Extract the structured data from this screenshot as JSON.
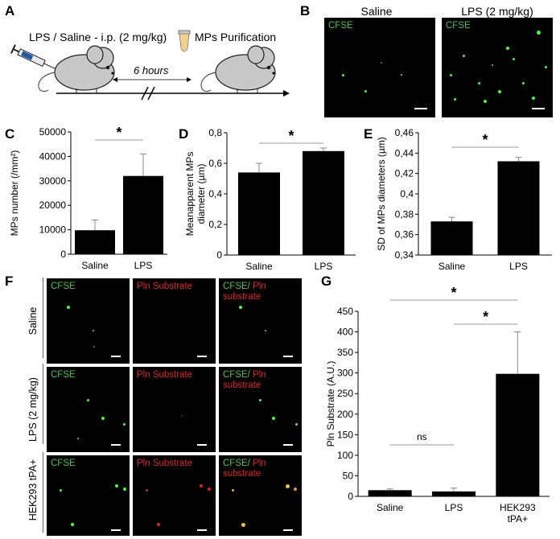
{
  "panels": {
    "A": "A",
    "B": "B",
    "C": "C",
    "D": "D",
    "E": "E",
    "F": "F",
    "G": "G"
  },
  "schematic": {
    "injection_label": "LPS / Saline - i.p. (2 mg/kg)",
    "purification_label": "MPs Purification",
    "time_label": "6 hours"
  },
  "panel_b": {
    "columns": [
      "Saline",
      "LPS (2 mg/kg)"
    ],
    "stain": "CFSE"
  },
  "panel_f": {
    "col_labels": {
      "cfse": "CFSE",
      "pln": "Pln Substrate",
      "merge_green": "CFSE/",
      "merge_red_1": "Pln",
      "merge_red_2": "substrate"
    },
    "rows": [
      "Saline",
      "LPS (2 mg/kg)",
      "HEK293 tPA+"
    ]
  },
  "colors": {
    "green": "#47c447",
    "red": "#e11f1f",
    "bar": "#000000"
  },
  "chart_data": [
    {
      "id": "C",
      "type": "bar",
      "categories": [
        "Saline",
        "LPS"
      ],
      "values": [
        9800,
        32000
      ],
      "errors": [
        4200,
        9000
      ],
      "ylabel": "MPs number (/mm²)",
      "ylim": [
        0,
        50000
      ],
      "yticks": [
        "0",
        "10000",
        "20000",
        "30000",
        "40000",
        "50000"
      ],
      "yticks_values": [
        0,
        10000,
        20000,
        30000,
        40000,
        50000
      ],
      "significance": [
        {
          "pair": [
            0,
            1
          ],
          "label": "*"
        }
      ]
    },
    {
      "id": "D",
      "type": "bar",
      "categories": [
        "Saline",
        "LPS"
      ],
      "values": [
        0.54,
        0.68
      ],
      "errors": [
        0.06,
        0.02
      ],
      "ylabel_lines": [
        "Meanapparent MPs",
        "diameter (µm)"
      ],
      "ylim": [
        0,
        0.8
      ],
      "yticks": [
        "0",
        "0,2",
        "0,4",
        "0,6",
        "0,8"
      ],
      "yticks_values": [
        0,
        0.2,
        0.4,
        0.6,
        0.8
      ],
      "significance": [
        {
          "pair": [
            0,
            1
          ],
          "label": "*"
        }
      ]
    },
    {
      "id": "E",
      "type": "bar",
      "categories": [
        "Saline",
        "LPS"
      ],
      "values": [
        0.373,
        0.432
      ],
      "errors": [
        0.004,
        0.004
      ],
      "ylabel": "SD of MPs diameters (µm)",
      "ylim": [
        0.34,
        0.46
      ],
      "yticks": [
        "0,34",
        "0,36",
        "0,38",
        "0,4",
        "0,42",
        "0,44",
        "0,46"
      ],
      "yticks_values": [
        0.34,
        0.36,
        0.38,
        0.4,
        0.42,
        0.44,
        0.46
      ],
      "significance": [
        {
          "pair": [
            0,
            1
          ],
          "label": "*"
        }
      ]
    },
    {
      "id": "G",
      "type": "bar",
      "categories": [
        "Saline",
        "LPS",
        "HEK293\ntPA+"
      ],
      "values": [
        15,
        12,
        298
      ],
      "errors": [
        3,
        8,
        102
      ],
      "ylabel": "Pln Substrate (A.U.)",
      "ylim": [
        0,
        450
      ],
      "yticks": [
        "0",
        "50",
        "100",
        "150",
        "200",
        "250",
        "300",
        "350",
        "400",
        "450"
      ],
      "yticks_values": [
        0,
        50,
        100,
        150,
        200,
        250,
        300,
        350,
        400,
        450
      ],
      "significance": [
        {
          "pair": [
            0,
            1
          ],
          "label": "ns"
        },
        {
          "pair": [
            0,
            2
          ],
          "label": "*"
        },
        {
          "pair": [
            1,
            2
          ],
          "label": "*"
        }
      ]
    }
  ]
}
